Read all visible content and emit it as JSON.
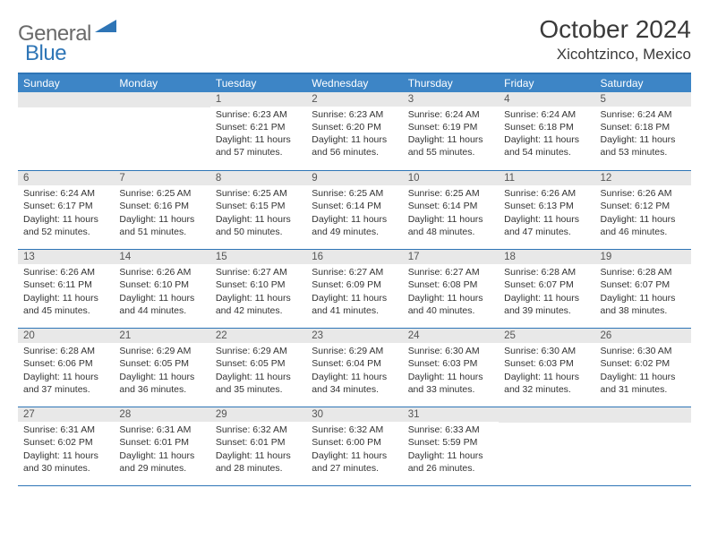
{
  "logo": {
    "text1": "General",
    "text2": "Blue"
  },
  "title": "October 2024",
  "location": "Xicohtzinco, Mexico",
  "colors": {
    "header_bg": "#3d85c6",
    "border": "#2e75b6",
    "daynum_bg": "#e8e8e8",
    "logo_gray": "#6a6a6a",
    "logo_blue": "#2e75b6"
  },
  "weekdays": [
    "Sunday",
    "Monday",
    "Tuesday",
    "Wednesday",
    "Thursday",
    "Friday",
    "Saturday"
  ],
  "leading_blanks": 2,
  "days": [
    {
      "n": "1",
      "sr": "6:23 AM",
      "ss": "6:21 PM",
      "dl": "11 hours and 57 minutes."
    },
    {
      "n": "2",
      "sr": "6:23 AM",
      "ss": "6:20 PM",
      "dl": "11 hours and 56 minutes."
    },
    {
      "n": "3",
      "sr": "6:24 AM",
      "ss": "6:19 PM",
      "dl": "11 hours and 55 minutes."
    },
    {
      "n": "4",
      "sr": "6:24 AM",
      "ss": "6:18 PM",
      "dl": "11 hours and 54 minutes."
    },
    {
      "n": "5",
      "sr": "6:24 AM",
      "ss": "6:18 PM",
      "dl": "11 hours and 53 minutes."
    },
    {
      "n": "6",
      "sr": "6:24 AM",
      "ss": "6:17 PM",
      "dl": "11 hours and 52 minutes."
    },
    {
      "n": "7",
      "sr": "6:25 AM",
      "ss": "6:16 PM",
      "dl": "11 hours and 51 minutes."
    },
    {
      "n": "8",
      "sr": "6:25 AM",
      "ss": "6:15 PM",
      "dl": "11 hours and 50 minutes."
    },
    {
      "n": "9",
      "sr": "6:25 AM",
      "ss": "6:14 PM",
      "dl": "11 hours and 49 minutes."
    },
    {
      "n": "10",
      "sr": "6:25 AM",
      "ss": "6:14 PM",
      "dl": "11 hours and 48 minutes."
    },
    {
      "n": "11",
      "sr": "6:26 AM",
      "ss": "6:13 PM",
      "dl": "11 hours and 47 minutes."
    },
    {
      "n": "12",
      "sr": "6:26 AM",
      "ss": "6:12 PM",
      "dl": "11 hours and 46 minutes."
    },
    {
      "n": "13",
      "sr": "6:26 AM",
      "ss": "6:11 PM",
      "dl": "11 hours and 45 minutes."
    },
    {
      "n": "14",
      "sr": "6:26 AM",
      "ss": "6:10 PM",
      "dl": "11 hours and 44 minutes."
    },
    {
      "n": "15",
      "sr": "6:27 AM",
      "ss": "6:10 PM",
      "dl": "11 hours and 42 minutes."
    },
    {
      "n": "16",
      "sr": "6:27 AM",
      "ss": "6:09 PM",
      "dl": "11 hours and 41 minutes."
    },
    {
      "n": "17",
      "sr": "6:27 AM",
      "ss": "6:08 PM",
      "dl": "11 hours and 40 minutes."
    },
    {
      "n": "18",
      "sr": "6:28 AM",
      "ss": "6:07 PM",
      "dl": "11 hours and 39 minutes."
    },
    {
      "n": "19",
      "sr": "6:28 AM",
      "ss": "6:07 PM",
      "dl": "11 hours and 38 minutes."
    },
    {
      "n": "20",
      "sr": "6:28 AM",
      "ss": "6:06 PM",
      "dl": "11 hours and 37 minutes."
    },
    {
      "n": "21",
      "sr": "6:29 AM",
      "ss": "6:05 PM",
      "dl": "11 hours and 36 minutes."
    },
    {
      "n": "22",
      "sr": "6:29 AM",
      "ss": "6:05 PM",
      "dl": "11 hours and 35 minutes."
    },
    {
      "n": "23",
      "sr": "6:29 AM",
      "ss": "6:04 PM",
      "dl": "11 hours and 34 minutes."
    },
    {
      "n": "24",
      "sr": "6:30 AM",
      "ss": "6:03 PM",
      "dl": "11 hours and 33 minutes."
    },
    {
      "n": "25",
      "sr": "6:30 AM",
      "ss": "6:03 PM",
      "dl": "11 hours and 32 minutes."
    },
    {
      "n": "26",
      "sr": "6:30 AM",
      "ss": "6:02 PM",
      "dl": "11 hours and 31 minutes."
    },
    {
      "n": "27",
      "sr": "6:31 AM",
      "ss": "6:02 PM",
      "dl": "11 hours and 30 minutes."
    },
    {
      "n": "28",
      "sr": "6:31 AM",
      "ss": "6:01 PM",
      "dl": "11 hours and 29 minutes."
    },
    {
      "n": "29",
      "sr": "6:32 AM",
      "ss": "6:01 PM",
      "dl": "11 hours and 28 minutes."
    },
    {
      "n": "30",
      "sr": "6:32 AM",
      "ss": "6:00 PM",
      "dl": "11 hours and 27 minutes."
    },
    {
      "n": "31",
      "sr": "6:33 AM",
      "ss": "5:59 PM",
      "dl": "11 hours and 26 minutes."
    }
  ],
  "labels": {
    "sunrise_prefix": "Sunrise: ",
    "sunset_prefix": "Sunset: ",
    "daylight_prefix": "Daylight: "
  }
}
